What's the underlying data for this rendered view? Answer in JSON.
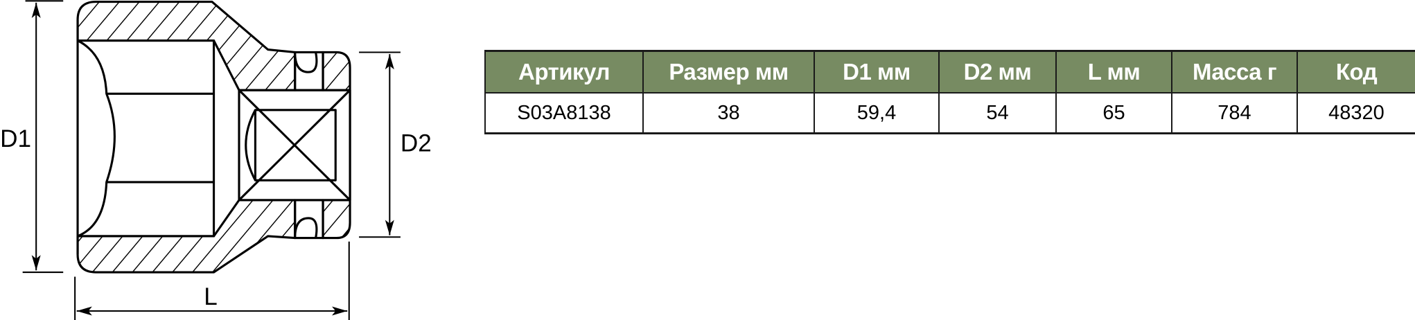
{
  "diagram": {
    "labels": {
      "d1": "D1",
      "d2": "D2",
      "l": "L"
    }
  },
  "table": {
    "headers": [
      "Артикул",
      "Размер мм",
      "D1 мм",
      "D2 мм",
      "L мм",
      "Масса г",
      "Код"
    ],
    "rows": [
      [
        "S03A8138",
        "38",
        "59,4",
        "54",
        "65",
        "784",
        "48320"
      ]
    ],
    "header_color": "#778b62"
  }
}
